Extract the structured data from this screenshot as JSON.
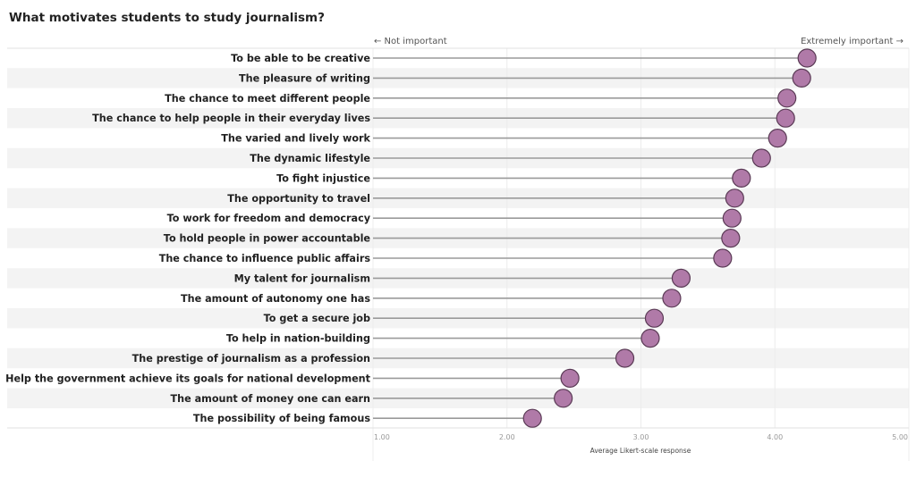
{
  "chart_data": {
    "type": "scatter",
    "subtype": "lollipop",
    "title": "What motivates students to study journalism?",
    "left_hint": "← Not important",
    "right_hint": "Extremely important →",
    "xlabel": "Average Likert-scale response",
    "ylabel": "",
    "xlim": [
      1,
      5
    ],
    "xticks": [
      "1.00",
      "2.00",
      "3.00",
      "4.00",
      "5.00"
    ],
    "grid": true,
    "colors": {
      "dot": "#b07aa8",
      "dot_stroke": "#5a3a55",
      "stem": "#9a9a9a",
      "band": "#f3f3f3"
    },
    "categories": [
      "To be able to be creative",
      "The pleasure of writing",
      "The chance to meet different people",
      "The chance to help people in their everyday lives",
      "The varied and lively work",
      "The dynamic lifestyle",
      "To fight injustice",
      "The opportunity to travel",
      "To work for freedom and democracy",
      "To hold people in power accountable",
      "The chance to influence public affairs",
      "My talent for journalism",
      "The amount of autonomy one has",
      "To get a secure job",
      "To help in nation-building",
      "The prestige of journalism as a profession",
      "Help the government achieve its goals for national development",
      "The amount of money one can earn",
      "The possibility of being famous"
    ],
    "values": [
      4.24,
      4.2,
      4.09,
      4.08,
      4.02,
      3.9,
      3.75,
      3.7,
      3.68,
      3.67,
      3.61,
      3.3,
      3.23,
      3.1,
      3.07,
      2.88,
      2.47,
      2.42,
      2.19
    ]
  }
}
